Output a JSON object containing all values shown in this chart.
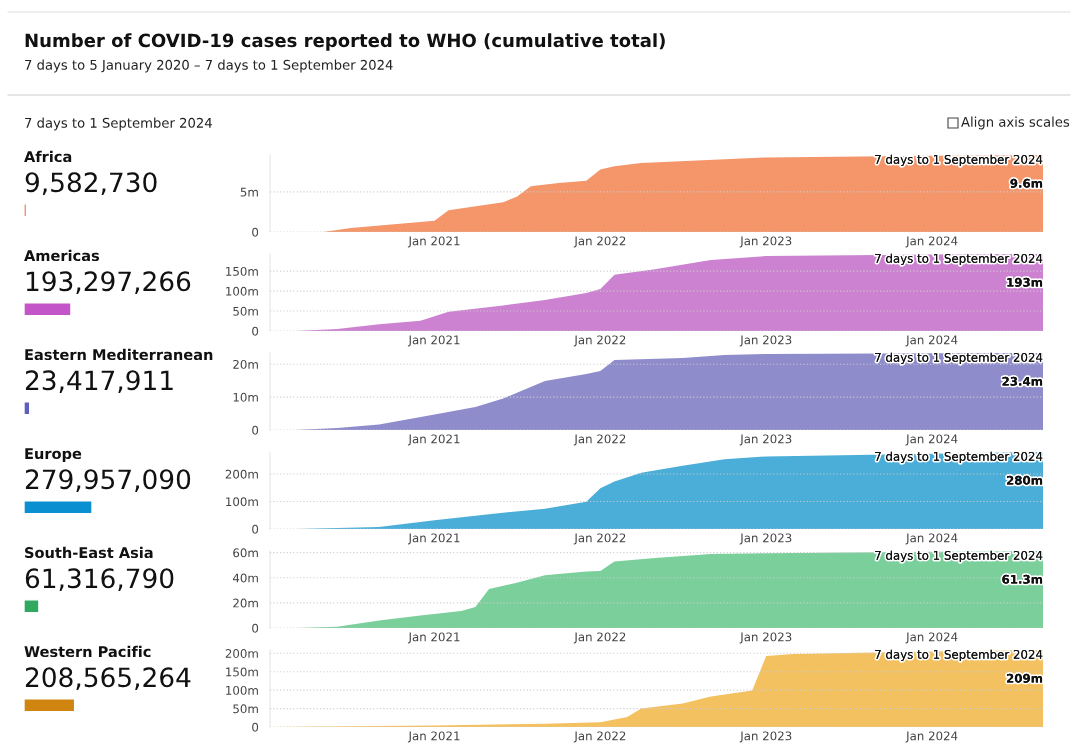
{
  "chart_data": [
    {
      "type": "bar",
      "orientation": "horizontal",
      "title": "Number of COVID-19 cases reported to WHO (cumulative total)",
      "subtitle": "7 days to 5 January 2020 – 7 days to 1 September 2024",
      "annotations": [
        "7 days to 1 September 2024",
        "Align axis scales"
      ],
      "categories": [
        "Africa",
        "Americas",
        "Eastern Mediterranean",
        "Europe",
        "South-East Asia",
        "Western Pacific"
      ],
      "values": [
        9582730,
        193297266,
        23417911,
        279957090,
        61316790,
        208565264
      ],
      "value_labels": [
        "9,582,730",
        "193,297,266",
        "23,417,911",
        "279,957,090",
        "61,316,790",
        "208,565,264"
      ],
      "colors": [
        "#e0603a",
        "#c455c8",
        "#5f5fbf",
        "#0a8fd0",
        "#2fa860",
        "#cf8510"
      ]
    },
    {
      "type": "area",
      "color": "#f4956a",
      "grid": "y",
      "x": [
        "2020-01-05",
        "2020-05-01",
        "2020-07-01",
        "2021-01-01",
        "2021-02-01",
        "2021-06-01",
        "2021-07-01",
        "2021-08-01",
        "2021-10-01",
        "2021-12-01",
        "2022-01-01",
        "2022-02-01",
        "2022-04-01",
        "2023-01-01",
        "2024-01-01",
        "2024-09-01"
      ],
      "values": [
        0,
        0,
        500000,
        1400000,
        2700000,
        3700000,
        4400000,
        5700000,
        6100000,
        6400000,
        7800000,
        8200000,
        8600000,
        9300000,
        9500000,
        9600000
      ],
      "xlim": [
        "2020-01-05",
        "2024-09-01"
      ],
      "ylim": [
        0,
        9600000
      ],
      "xticks": [
        {
          "value": "2021-01-01",
          "label": "Jan 2021"
        },
        {
          "value": "2022-01-01",
          "label": "Jan 2022"
        },
        {
          "value": "2023-01-01",
          "label": "Jan 2023"
        },
        {
          "value": "2024-01-01",
          "label": "Jan 2024"
        }
      ],
      "yticks": [
        0,
        {
          "value": 5000000,
          "label": "5m"
        }
      ],
      "annotations": [
        "7 days to 1 September 2024",
        {
          "text": "9.6m",
          "x": "2024-09-01",
          "y": 9600000
        }
      ]
    },
    {
      "type": "area",
      "color": "#cc82d1",
      "grid": "y",
      "x": [
        "2020-01-05",
        "2020-03-01",
        "2020-06-01",
        "2020-09-01",
        "2020-12-01",
        "2021-02-01",
        "2021-06-01",
        "2021-09-01",
        "2021-12-01",
        "2022-01-01",
        "2022-02-01",
        "2022-05-01",
        "2022-09-01",
        "2023-01-01",
        "2024-01-01",
        "2024-09-01"
      ],
      "values": [
        0,
        0,
        5000000,
        17000000,
        26000000,
        48000000,
        64000000,
        78000000,
        95000000,
        105000000,
        141000000,
        155000000,
        178000000,
        188000000,
        192000000,
        193000000
      ],
      "xlim": [
        "2020-01-05",
        "2024-09-01"
      ],
      "ylim": [
        0,
        193000000
      ],
      "xticks": [
        {
          "value": "2021-01-01",
          "label": "Jan 2021"
        },
        {
          "value": "2022-01-01",
          "label": "Jan 2022"
        },
        {
          "value": "2023-01-01",
          "label": "Jan 2023"
        },
        {
          "value": "2024-01-01",
          "label": "Jan 2024"
        }
      ],
      "yticks": [
        0,
        {
          "value": 50000000,
          "label": "50m"
        },
        {
          "value": 100000000,
          "label": "100m"
        },
        {
          "value": 150000000,
          "label": "150m"
        }
      ],
      "annotations": [
        "7 days to 1 September 2024",
        {
          "text": "193m",
          "x": "2024-09-01",
          "y": 193000000
        }
      ]
    },
    {
      "type": "area",
      "color": "#8f8ccc",
      "grid": "y",
      "x": [
        "2020-01-05",
        "2020-03-01",
        "2020-06-01",
        "2020-09-01",
        "2021-01-01",
        "2021-04-01",
        "2021-06-01",
        "2021-09-01",
        "2021-12-01",
        "2022-01-01",
        "2022-02-01",
        "2022-07-01",
        "2022-10-01",
        "2023-01-01",
        "2024-01-01",
        "2024-09-01"
      ],
      "values": [
        0,
        0,
        600000,
        1700000,
        4700000,
        7000000,
        9600000,
        14900000,
        17000000,
        17900000,
        21300000,
        21900000,
        22800000,
        23100000,
        23300000,
        23400000
      ],
      "xlim": [
        "2020-01-05",
        "2024-09-01"
      ],
      "ylim": [
        0,
        23400000
      ],
      "xticks": [
        {
          "value": "2021-01-01",
          "label": "Jan 2021"
        },
        {
          "value": "2022-01-01",
          "label": "Jan 2022"
        },
        {
          "value": "2023-01-01",
          "label": "Jan 2023"
        },
        {
          "value": "2024-01-01",
          "label": "Jan 2024"
        }
      ],
      "yticks": [
        0,
        {
          "value": 10000000,
          "label": "10m"
        },
        {
          "value": 20000000,
          "label": "20m"
        }
      ],
      "annotations": [
        "7 days to 1 September 2024",
        {
          "text": "23.4m",
          "x": "2024-09-01",
          "y": 23400000
        }
      ]
    },
    {
      "type": "area",
      "color": "#4aaed8",
      "grid": "y",
      "x": [
        "2020-01-05",
        "2020-03-01",
        "2020-09-01",
        "2021-01-01",
        "2021-05-01",
        "2021-09-01",
        "2021-12-01",
        "2022-01-01",
        "2022-02-01",
        "2022-04-01",
        "2022-07-01",
        "2022-10-01",
        "2023-01-01",
        "2024-01-01",
        "2024-09-01"
      ],
      "values": [
        0,
        0,
        7000000,
        32000000,
        54000000,
        74000000,
        99000000,
        148000000,
        173000000,
        205000000,
        230000000,
        254000000,
        264000000,
        274000000,
        280000000
      ],
      "xlim": [
        "2020-01-05",
        "2024-09-01"
      ],
      "ylim": [
        0,
        280000000
      ],
      "xticks": [
        {
          "value": "2021-01-01",
          "label": "Jan 2021"
        },
        {
          "value": "2022-01-01",
          "label": "Jan 2022"
        },
        {
          "value": "2023-01-01",
          "label": "Jan 2023"
        },
        {
          "value": "2024-01-01",
          "label": "Jan 2024"
        }
      ],
      "yticks": [
        0,
        {
          "value": 100000000,
          "label": "100m"
        },
        {
          "value": 200000000,
          "label": "200m"
        }
      ],
      "annotations": [
        "7 days to 1 September 2024",
        {
          "text": "280m",
          "x": "2024-09-01",
          "y": 280000000
        }
      ]
    },
    {
      "type": "area",
      "color": "#7acf9b",
      "grid": "y",
      "x": [
        "2020-01-05",
        "2020-03-01",
        "2020-06-01",
        "2020-09-01",
        "2020-12-01",
        "2021-03-01",
        "2021-04-01",
        "2021-05-01",
        "2021-07-01",
        "2021-09-01",
        "2021-12-01",
        "2022-01-01",
        "2022-02-01",
        "2022-05-01",
        "2022-09-01",
        "2023-01-01",
        "2024-01-01",
        "2024-09-01"
      ],
      "values": [
        0,
        0,
        1000000,
        6000000,
        10000000,
        13500000,
        16800000,
        31000000,
        36000000,
        42000000,
        45000000,
        45400000,
        53000000,
        55700000,
        59000000,
        59500000,
        60800000,
        61300000
      ],
      "xlim": [
        "2020-01-05",
        "2024-09-01"
      ],
      "ylim": [
        0,
        61300000
      ],
      "xticks": [
        {
          "value": "2021-01-01",
          "label": "Jan 2021"
        },
        {
          "value": "2022-01-01",
          "label": "Jan 2022"
        },
        {
          "value": "2023-01-01",
          "label": "Jan 2023"
        },
        {
          "value": "2024-01-01",
          "label": "Jan 2024"
        }
      ],
      "yticks": [
        0,
        {
          "value": 20000000,
          "label": "20m"
        },
        {
          "value": 40000000,
          "label": "40m"
        },
        {
          "value": 60000000,
          "label": "60m"
        }
      ],
      "annotations": [
        "7 days to 1 September 2024",
        {
          "text": "61.3m",
          "x": "2024-09-01",
          "y": 61300000
        }
      ]
    },
    {
      "type": "area",
      "color": "#f4c160",
      "grid": "y",
      "x": [
        "2020-01-05",
        "2021-01-01",
        "2021-09-01",
        "2022-01-01",
        "2022-03-01",
        "2022-04-01",
        "2022-07-01",
        "2022-09-01",
        "2022-12-01",
        "2023-01-01",
        "2023-03-01",
        "2024-01-01",
        "2024-09-01"
      ],
      "values": [
        0,
        4000000,
        9000000,
        13000000,
        27000000,
        50000000,
        64000000,
        83000000,
        99000000,
        193000000,
        198000000,
        205000000,
        209000000
      ],
      "xlim": [
        "2020-01-05",
        "2024-09-01"
      ],
      "ylim": [
        0,
        209000000
      ],
      "xticks": [
        {
          "value": "2021-01-01",
          "label": "Jan 2021"
        },
        {
          "value": "2022-01-01",
          "label": "Jan 2022"
        },
        {
          "value": "2023-01-01",
          "label": "Jan 2023"
        },
        {
          "value": "2024-01-01",
          "label": "Jan 2024"
        }
      ],
      "yticks": [
        0,
        {
          "value": 50000000,
          "label": "50m"
        },
        {
          "value": 100000000,
          "label": "100m"
        },
        {
          "value": 150000000,
          "label": "150m"
        },
        {
          "value": 200000000,
          "label": "200m"
        }
      ],
      "annotations": [
        "7 days to 1 September 2024",
        {
          "text": "209m",
          "x": "2024-09-01",
          "y": 209000000
        }
      ]
    }
  ]
}
